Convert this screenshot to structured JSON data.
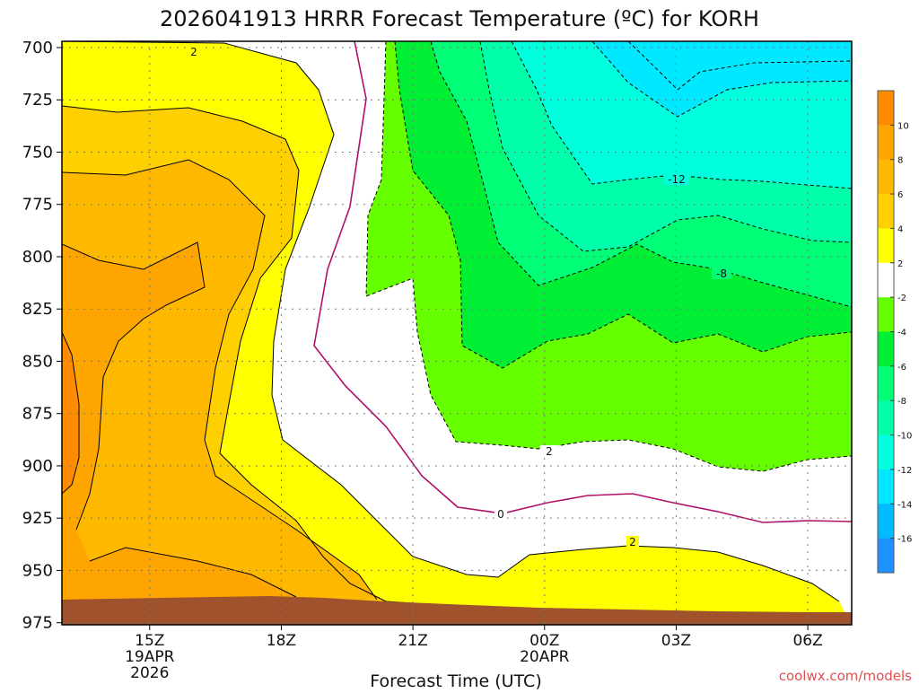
{
  "chart_data": {
    "type": "heatmap",
    "title": "2026041913 HRRR Forecast Temperature (ºC) for KORH",
    "xlabel": "Forecast Time (UTC)",
    "ylabel": "",
    "credit": "coolwx.com/models",
    "y_ticks": [
      "700",
      "725",
      "750",
      "775",
      "800",
      "825",
      "850",
      "875",
      "900",
      "925",
      "950",
      "975"
    ],
    "y_range_hPa": [
      976,
      697
    ],
    "x_range_hours_from_13Z": [
      0,
      18
    ],
    "x_ticks": [
      {
        "label": "15Z",
        "sub1": "19APR",
        "sub2": "2026",
        "hour": 2
      },
      {
        "label": "18Z",
        "sub1": "",
        "sub2": "",
        "hour": 5
      },
      {
        "label": "21Z",
        "sub1": "",
        "sub2": "",
        "hour": 8
      },
      {
        "label": "00Z",
        "sub1": "20APR",
        "sub2": "",
        "hour": 11
      },
      {
        "label": "03Z",
        "sub1": "",
        "sub2": "",
        "hour": 14
      },
      {
        "label": "06Z",
        "sub1": "",
        "sub2": "",
        "hour": 17
      }
    ],
    "colorbar": {
      "labels": [
        "10",
        "8",
        "6",
        "4",
        "2",
        "-2",
        "-4",
        "-6",
        "-8",
        "-10",
        "-12",
        "-14",
        "-16"
      ],
      "colors": [
        "#ff8c00",
        "#ffa500",
        "#ffb800",
        "#ffd000",
        "#ffff00",
        "#ffffff",
        "#66ff00",
        "#00ee33",
        "#00ff77",
        "#00ffaa",
        "#00ffdd",
        "#00e8ff",
        "#00bbff",
        "#1e90ff"
      ]
    },
    "contour_labels": [
      "2",
      "-12",
      "-8",
      "2",
      "0",
      "2"
    ],
    "ground_color": "#a0522d",
    "grid": true
  }
}
